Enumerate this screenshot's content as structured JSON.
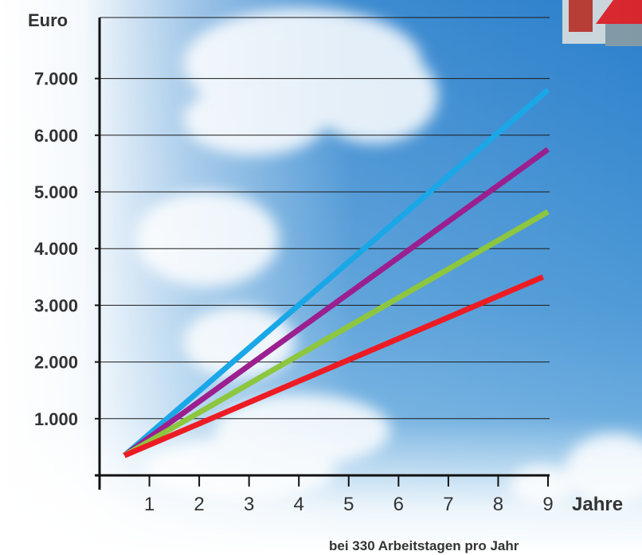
{
  "chart_data": {
    "type": "line",
    "ylabel": "Euro",
    "xlabel": "Jahre",
    "footnote": "bei 330 Arbeitstagen pro Jahr",
    "x_ticks": [
      1,
      2,
      3,
      4,
      5,
      6,
      7,
      8,
      9
    ],
    "y_ticks": [
      1000,
      2000,
      3000,
      4000,
      5000,
      6000,
      7000
    ],
    "y_tick_labels": [
      "1.000",
      "2.000",
      "3.000",
      "4.000",
      "5.000",
      "6.000",
      "7.000"
    ],
    "x_tick_labels": [
      "1",
      "2",
      "3",
      "4",
      "5",
      "6",
      "7",
      "8",
      "9"
    ],
    "xlim": [
      0,
      9
    ],
    "ylim": [
      0,
      8000
    ],
    "grid": true,
    "series": [
      {
        "color": "#1aa7e8",
        "x": [
          0.5,
          9.0
        ],
        "y": [
          350,
          6800
        ]
      },
      {
        "color": "#9b1f8f",
        "x": [
          0.5,
          9.0
        ],
        "y": [
          350,
          5750
        ]
      },
      {
        "color": "#8dc63f",
        "x": [
          0.5,
          9.0
        ],
        "y": [
          350,
          4650
        ]
      },
      {
        "color": "#ed1c24",
        "x": [
          0.5,
          8.9
        ],
        "y": [
          350,
          3500
        ]
      }
    ]
  },
  "colors": {
    "sky_top": "#2f86cf",
    "sky_bottom": "#7dbbe6",
    "axis": "#111111",
    "text": "#333333"
  }
}
